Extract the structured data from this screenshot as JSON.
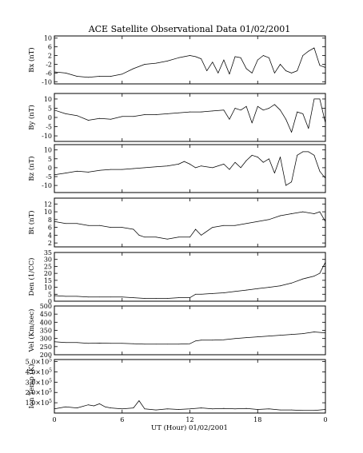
{
  "chart_data": {
    "type": "line",
    "title": "ACE Satellite Observational Data   01/02/2001",
    "xlabel": "UT (Hour)   01/02/2001",
    "x_ticks": [
      "0",
      "6",
      "12",
      "18",
      "0"
    ],
    "xlim": [
      0,
      24
    ],
    "panels": [
      {
        "ylabel": "Bx (nT)",
        "ylim": [
          -11,
          11
        ],
        "y_ticks": [
          10,
          6,
          2,
          -2,
          -6,
          -10
        ],
        "y_tick_labels": [
          "10",
          "6",
          "2",
          "-2",
          "-6",
          "-10"
        ],
        "x": [
          0,
          1,
          2,
          3,
          4,
          5,
          6,
          7,
          8,
          9,
          10,
          11,
          11.5,
          12,
          12.5,
          13,
          13.5,
          14,
          14.5,
          15,
          15.5,
          16,
          16.5,
          17,
          17.5,
          18,
          18.5,
          19,
          19.5,
          20,
          20.5,
          21,
          21.5,
          22,
          22.5,
          23,
          23.5,
          24
        ],
        "y": [
          -5.5,
          -6,
          -7.5,
          -8,
          -7.5,
          -7.5,
          -6.5,
          -4,
          -2,
          -1.5,
          -0.5,
          1,
          1.5,
          2,
          1.5,
          0.5,
          -5,
          -1,
          -6,
          0,
          -6.5,
          1.5,
          1,
          -4,
          -6,
          0,
          2,
          1,
          -6,
          -2,
          -5,
          -6,
          -5,
          2,
          4,
          5.5,
          -2.5,
          -3.5
        ]
      },
      {
        "ylabel": "By (nT)",
        "ylim": [
          -13,
          13
        ],
        "y_ticks": [
          10,
          5,
          0,
          -5,
          -10
        ],
        "y_tick_labels": [
          "10",
          "5",
          "0",
          "-5",
          "-10"
        ],
        "x": [
          0,
          1,
          2,
          3,
          4,
          5,
          6,
          7,
          8,
          9,
          10,
          11,
          12,
          13,
          14,
          15,
          15.5,
          16,
          16.5,
          17,
          17.5,
          18,
          18.5,
          19,
          19.5,
          20,
          20.5,
          21,
          21.5,
          22,
          22.5,
          23,
          23.5,
          24
        ],
        "y": [
          4,
          2,
          1,
          -1.5,
          -0.5,
          -1,
          0.5,
          0.5,
          1.5,
          1.5,
          2,
          2.5,
          3,
          3,
          3.5,
          4,
          -1,
          5,
          4,
          6,
          -3,
          6,
          4,
          5,
          7,
          4,
          -1,
          -8,
          3,
          2,
          -6,
          10,
          10,
          -3
        ]
      },
      {
        "ylabel": "Bz (nT)",
        "ylim": [
          -14,
          13
        ],
        "y_ticks": [
          10,
          5,
          0,
          -5,
          -10
        ],
        "y_tick_labels": [
          "10",
          "5",
          "0",
          "-5",
          "-10"
        ],
        "x": [
          0,
          1,
          2,
          3,
          4,
          5,
          6,
          7,
          8,
          9,
          10,
          11,
          11.5,
          12,
          12.5,
          13,
          14,
          15,
          15.5,
          16,
          16.5,
          17,
          17.5,
          18,
          18.5,
          19,
          19.5,
          20,
          20.5,
          21,
          21.5,
          22,
          22.5,
          23,
          23.5,
          24
        ],
        "y": [
          -4,
          -3,
          -2,
          -2.5,
          -1.5,
          -1,
          -1,
          -0.5,
          0,
          0.5,
          1,
          2,
          3.5,
          2,
          0,
          1,
          0,
          2,
          -1,
          3,
          0,
          4,
          7,
          6,
          3,
          5,
          -3,
          6,
          -10,
          -8,
          7,
          9,
          9,
          7,
          -2,
          -6
        ]
      },
      {
        "ylabel": "Bt (nT)",
        "ylim": [
          1,
          13.5
        ],
        "y_ticks": [
          12,
          10,
          8,
          6,
          4,
          2
        ],
        "y_tick_labels": [
          "12",
          "10",
          "8",
          "6",
          "4",
          "2"
        ],
        "x": [
          0,
          1,
          2,
          3,
          4,
          5,
          6,
          7,
          7.5,
          8,
          9,
          10,
          11,
          12,
          12.5,
          13,
          14,
          15,
          16,
          17,
          18,
          19,
          20,
          21,
          22,
          23,
          23.5,
          24
        ],
        "y": [
          7.5,
          7,
          7,
          6.5,
          6.5,
          6,
          6,
          5.5,
          4,
          3.5,
          3.5,
          3,
          3.5,
          3.5,
          5.5,
          4,
          6,
          6.5,
          6.5,
          7,
          7.5,
          8,
          9,
          9.5,
          10,
          9.5,
          10,
          7.5
        ]
      },
      {
        "ylabel": "Den (1/CC)",
        "ylim": [
          0,
          35
        ],
        "y_ticks": [
          35,
          30,
          25,
          20,
          15,
          10,
          5,
          0
        ],
        "y_tick_labels": [
          "35",
          "30",
          "25",
          "20",
          "15",
          "10",
          "5",
          "0"
        ],
        "x": [
          0,
          1,
          2,
          3,
          4,
          5,
          6,
          7,
          8,
          9,
          10,
          11,
          12,
          12.5,
          13,
          14,
          15,
          16,
          17,
          18,
          19,
          20,
          21,
          22,
          23,
          23.5,
          24
        ],
        "y": [
          4,
          3.5,
          3.5,
          3,
          3,
          3,
          3,
          2.5,
          2,
          2,
          2,
          2.5,
          2.5,
          5,
          5,
          5.5,
          6,
          7,
          8,
          9,
          10,
          11,
          13,
          16,
          18,
          20,
          28
        ]
      },
      {
        "ylabel": "Vel (Km/sec)",
        "ylim": [
          200,
          500
        ],
        "y_ticks": [
          500,
          450,
          400,
          350,
          300,
          250,
          200
        ],
        "y_tick_labels": [
          "500",
          "450",
          "400",
          "350",
          "300",
          "250",
          "200"
        ],
        "x": [
          0,
          1,
          2,
          3,
          4,
          5,
          6,
          7,
          8,
          9,
          10,
          11,
          12,
          12.5,
          13,
          14,
          15,
          16,
          17,
          18,
          19,
          20,
          21,
          22,
          23,
          24
        ],
        "y": [
          280,
          275,
          275,
          270,
          272,
          270,
          270,
          268,
          265,
          265,
          265,
          265,
          268,
          285,
          290,
          290,
          292,
          300,
          305,
          310,
          315,
          320,
          325,
          330,
          340,
          335
        ]
      },
      {
        "ylabel": "Ion Temp (K)",
        "ylim": [
          0,
          520000
        ],
        "y_ticks": [
          500000,
          400000,
          300000,
          200000,
          100000
        ],
        "y_tick_labels": [
          [
            "5.0",
            "5"
          ],
          [
            "4.0",
            "5"
          ],
          [
            "3.0",
            "5"
          ],
          [
            "2.0",
            "5"
          ],
          [
            "1.0",
            "5"
          ]
        ],
        "x": [
          0,
          1,
          2,
          3,
          3.5,
          4,
          4.5,
          5,
          6,
          7,
          7.5,
          8,
          9,
          10,
          11,
          12,
          13,
          14,
          15,
          16,
          17,
          18,
          19,
          20,
          21,
          22,
          23,
          24
        ],
        "y": [
          40000,
          60000,
          50000,
          80000,
          70000,
          90000,
          60000,
          50000,
          40000,
          50000,
          120000,
          40000,
          30000,
          40000,
          35000,
          40000,
          50000,
          40000,
          45000,
          40000,
          45000,
          35000,
          40000,
          30000,
          30000,
          25000,
          25000,
          35000
        ]
      }
    ]
  }
}
